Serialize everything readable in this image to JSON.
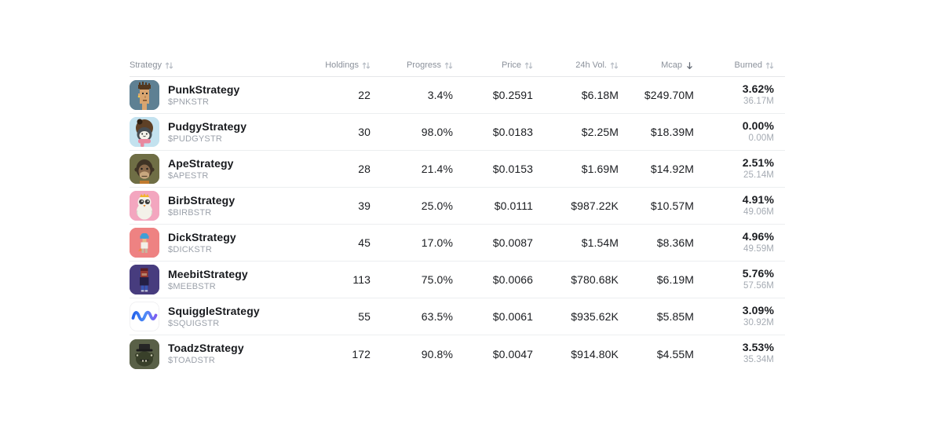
{
  "table": {
    "columns": [
      {
        "key": "strategy",
        "label": "Strategy",
        "sort": "both"
      },
      {
        "key": "holdings",
        "label": "Holdings",
        "sort": "both"
      },
      {
        "key": "progress",
        "label": "Progress",
        "sort": "both"
      },
      {
        "key": "price",
        "label": "Price",
        "sort": "both"
      },
      {
        "key": "volume_24h",
        "label": "24h Vol.",
        "sort": "both"
      },
      {
        "key": "mcap",
        "label": "Mcap",
        "sort": "desc"
      },
      {
        "key": "burned",
        "label": "Burned",
        "sort": "both"
      }
    ],
    "rows": [
      {
        "name": "PunkStrategy",
        "ticker": "$PNKSTR",
        "holdings": "22",
        "progress": "3.4%",
        "price": "$0.2591",
        "volume_24h": "$6.18M",
        "mcap": "$249.70M",
        "burned_pct": "3.62%",
        "burned_amount": "36.17M",
        "avatar": "punk",
        "avatar_bg": "#5E8093"
      },
      {
        "name": "PudgyStrategy",
        "ticker": "$PUDGYSTR",
        "holdings": "30",
        "progress": "98.0%",
        "price": "$0.0183",
        "volume_24h": "$2.25M",
        "mcap": "$18.39M",
        "burned_pct": "0.00%",
        "burned_amount": "0.00M",
        "avatar": "pudgy",
        "avatar_bg": "#C3E2EF"
      },
      {
        "name": "ApeStrategy",
        "ticker": "$APESTR",
        "holdings": "28",
        "progress": "21.4%",
        "price": "$0.0153",
        "volume_24h": "$1.69M",
        "mcap": "$14.92M",
        "burned_pct": "2.51%",
        "burned_amount": "25.14M",
        "avatar": "ape",
        "avatar_bg": "#6F6E45"
      },
      {
        "name": "BirbStrategy",
        "ticker": "$BIRBSTR",
        "holdings": "39",
        "progress": "25.0%",
        "price": "$0.0111",
        "volume_24h": "$987.22K",
        "mcap": "$10.57M",
        "burned_pct": "4.91%",
        "burned_amount": "49.06M",
        "avatar": "birb",
        "avatar_bg": "#F3A6BF"
      },
      {
        "name": "DickStrategy",
        "ticker": "$DICKSTR",
        "holdings": "45",
        "progress": "17.0%",
        "price": "$0.0087",
        "volume_24h": "$1.54M",
        "mcap": "$8.36M",
        "burned_pct": "4.96%",
        "burned_amount": "49.59M",
        "avatar": "dick",
        "avatar_bg": "#EE8282"
      },
      {
        "name": "MeebitStrategy",
        "ticker": "$MEEBSTR",
        "holdings": "113",
        "progress": "75.0%",
        "price": "$0.0066",
        "volume_24h": "$780.68K",
        "mcap": "$6.19M",
        "burned_pct": "5.76%",
        "burned_amount": "57.56M",
        "avatar": "meebit",
        "avatar_bg": "#473C7E"
      },
      {
        "name": "SquiggleStrategy",
        "ticker": "$SQUIGSTR",
        "holdings": "55",
        "progress": "63.5%",
        "price": "$0.0061",
        "volume_24h": "$935.62K",
        "mcap": "$5.85M",
        "burned_pct": "3.09%",
        "burned_amount": "30.92M",
        "avatar": "squiggle",
        "avatar_bg": "#FFFFFF"
      },
      {
        "name": "ToadzStrategy",
        "ticker": "$TOADSTR",
        "holdings": "172",
        "progress": "90.8%",
        "price": "$0.0047",
        "volume_24h": "$914.80K",
        "mcap": "$4.55M",
        "burned_pct": "3.53%",
        "burned_amount": "35.34M",
        "avatar": "toadz",
        "avatar_bg": "#596047"
      }
    ],
    "sort_icon_colors": {
      "inactive": "#b8bec6",
      "active": "#646b75"
    }
  }
}
